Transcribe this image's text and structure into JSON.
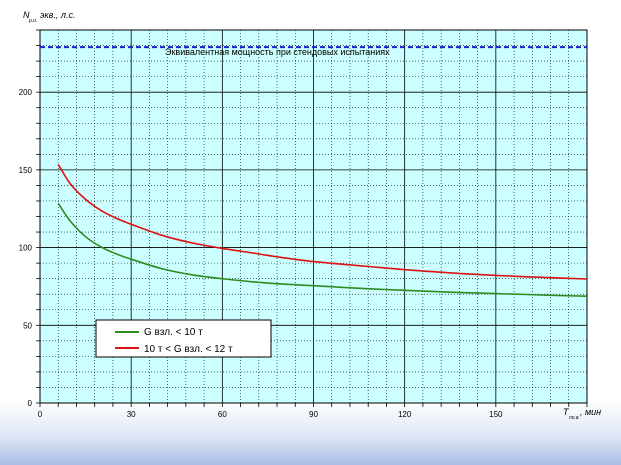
{
  "chart_data": {
    "type": "line",
    "ylabel_main": "N",
    "ylabel_sub": "р.о.",
    "ylabel_rest": "экв., л.с.",
    "xlabel_main": "T",
    "xlabel_sub": "по.в.",
    "xlabel_rest": ", мин",
    "xlim": [
      0,
      180
    ],
    "ylim": [
      0,
      240
    ],
    "x_ticks": [
      0,
      30,
      60,
      90,
      120,
      150
    ],
    "y_ticks": [
      0,
      50,
      100,
      150,
      200
    ],
    "grid": true,
    "background": "#ccffff",
    "annotation": {
      "text": "Эквивалентная мощность при стендовых испытаниях",
      "y": 229,
      "color": "#1f1fcc"
    },
    "legend": {
      "placement": "bottom-left"
    },
    "series": [
      {
        "name": "G взл. < 10 т",
        "color": "#2e8b1e",
        "x": [
          6,
          10,
          15,
          20,
          25,
          30,
          40,
          50,
          60,
          70,
          80,
          90,
          100,
          110,
          120,
          130,
          140,
          150,
          160,
          170,
          180
        ],
        "values": [
          128.5,
          117,
          107,
          100.5,
          96,
          92.5,
          86.5,
          82.5,
          80,
          78,
          76.5,
          75.5,
          74.3,
          73.3,
          72.5,
          71.7,
          71,
          70.4,
          69.8,
          69.2,
          68.7
        ]
      },
      {
        "name": "10 т < G взл. < 12 т",
        "color": "#dd1111",
        "x": [
          6,
          10,
          15,
          20,
          25,
          30,
          40,
          50,
          60,
          70,
          80,
          90,
          100,
          110,
          120,
          130,
          140,
          150,
          160,
          170,
          180
        ],
        "values": [
          153.5,
          141,
          131,
          124,
          119,
          115,
          108,
          103,
          99.5,
          96.5,
          93.5,
          91,
          89.2,
          87.5,
          85.8,
          84.4,
          83.1,
          82.1,
          81.2,
          80.5,
          79.8
        ]
      }
    ]
  }
}
